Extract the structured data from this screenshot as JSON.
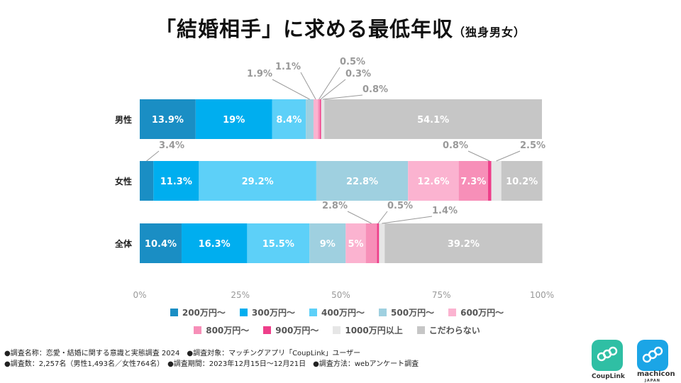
{
  "title": {
    "main": "「結婚相手」に求める最低年収",
    "sub": "（独身男女）"
  },
  "chart_data": {
    "type": "stacked-bar-horizontal",
    "title": "「結婚相手」に求める最低年収（独身男女）",
    "categories": [
      "男性",
      "女性",
      "全体"
    ],
    "series": [
      {
        "name": "200万円～",
        "color": "#1a8ec4",
        "values": [
          13.9,
          3.4,
          10.4
        ],
        "labels": [
          "13.9%",
          "3.4%",
          "10.4%"
        ]
      },
      {
        "name": "300万円～",
        "color": "#00aeef",
        "values": [
          19,
          11.3,
          16.3
        ],
        "labels": [
          "19%",
          "11.3%",
          "16.3%"
        ]
      },
      {
        "name": "400万円～",
        "color": "#5dd0f8",
        "values": [
          8.4,
          29.2,
          15.5
        ],
        "labels": [
          "8.4%",
          "29.2%",
          "15.5%"
        ]
      },
      {
        "name": "500万円～",
        "color": "#9fd0e0",
        "values": [
          1.9,
          22.8,
          9
        ],
        "labels": [
          "1.9%",
          "22.8%",
          "9%"
        ]
      },
      {
        "name": "600万円～",
        "color": "#fbb3d0",
        "values": [
          1.1,
          12.6,
          5
        ],
        "labels": [
          "1.1%",
          "12.6%",
          "5%"
        ]
      },
      {
        "name": "800万円～",
        "color": "#f78fb8",
        "values": [
          0.5,
          7.3,
          2.8
        ],
        "labels": [
          "0.5%",
          "7.3%",
          "2.8%"
        ]
      },
      {
        "name": "900万円～",
        "color": "#ee3f8a",
        "values": [
          0.3,
          0.8,
          0.5
        ],
        "labels": [
          "0.3%",
          "0.8%",
          "0.5%"
        ]
      },
      {
        "name": "1000万円以上",
        "color": "#e6e6e6",
        "values": [
          0.8,
          2.5,
          1.4
        ],
        "labels": [
          "0.8%",
          "2.5%",
          "1.4%"
        ]
      },
      {
        "name": "こだわらない",
        "color": "#c6c6c6",
        "values": [
          54.1,
          10.2,
          39.2
        ],
        "labels": [
          "54.1%",
          "10.2%",
          "39.2%"
        ]
      }
    ],
    "x_ticks": [
      "0%",
      "25%",
      "50%",
      "75%",
      "100%"
    ],
    "xlim": [
      0,
      100
    ],
    "legend_position": "bottom"
  },
  "notes": {
    "line1": "●調査名称：恋愛・結婚に関する意識と実態調査 2024　●調査対象：マッチングアプリ「CoupLink」ユーザー",
    "line2": "●調査数：2,257名（男性1,493名／女性764名）　●調査期間：2023年12月15日～12月21日　●調査方法：webアンケート調査"
  },
  "logos": {
    "couplink": {
      "name": "CoupLink",
      "color": "#2fbfa4"
    },
    "machicon": {
      "name": "machicon",
      "tagline": "JAPAN",
      "color": "#1ba5e6"
    }
  }
}
